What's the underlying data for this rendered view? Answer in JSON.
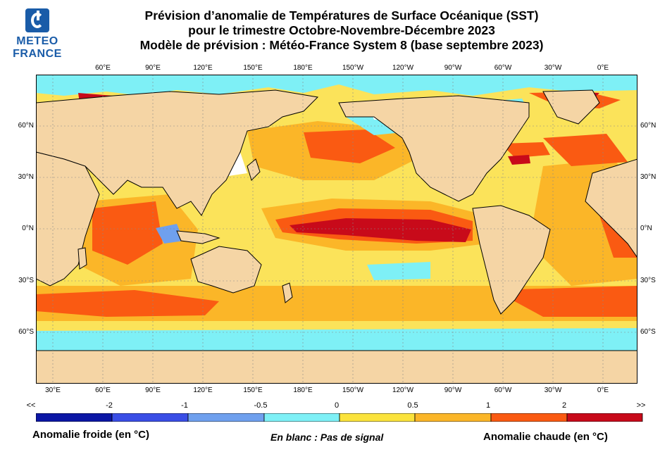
{
  "logo": {
    "line1": "METEO",
    "line2": "FRANCE"
  },
  "title": {
    "line1": "Prévision d’anomalie de Températures de Surface Océanique (SST)",
    "line2": "pour le trimestre Octobre-Novembre-Décembre 2023",
    "line3": "Modèle de prévision : Météo-France System 8 (base septembre 2023)"
  },
  "map": {
    "lon_top": [
      "60°E",
      "90°E",
      "120°E",
      "150°E",
      "180°E",
      "150°W",
      "120°W",
      "90°W",
      "60°W",
      "30°W",
      "0°E"
    ],
    "lon_bottom": [
      "30°E",
      "60°E",
      "90°E",
      "120°E",
      "150°E",
      "180°E",
      "150°W",
      "120°W",
      "90°W",
      "60°W",
      "30°W",
      "0°E"
    ],
    "lat_left": [
      "60°N",
      "30°N",
      "0°N",
      "30°S",
      "60°S"
    ],
    "lat_right": [
      "60°N",
      "30°N",
      "0°N",
      "30°S",
      "60°S"
    ],
    "colors": {
      "land": "#f5d5a5",
      "ocean_background": "#fbe35a",
      "coast": "#000000",
      "grid": "#888888"
    }
  },
  "colorbar": {
    "labels": [
      "<<",
      "-2",
      "-1",
      "-0.5",
      "0",
      "0.5",
      "1",
      "2",
      ">>"
    ],
    "colors": [
      "#0b16a5",
      "#3a4ee6",
      "#6fa0ee",
      "#7ef0f6",
      "#fbe33c",
      "#fbb628",
      "#fa5a12",
      "#c80a1a"
    ]
  },
  "legend": {
    "cold": "Anomalie froide (en °C)",
    "no_signal": "En blanc : Pas de signal",
    "warm": "Anomalie chaude (en °C)"
  }
}
